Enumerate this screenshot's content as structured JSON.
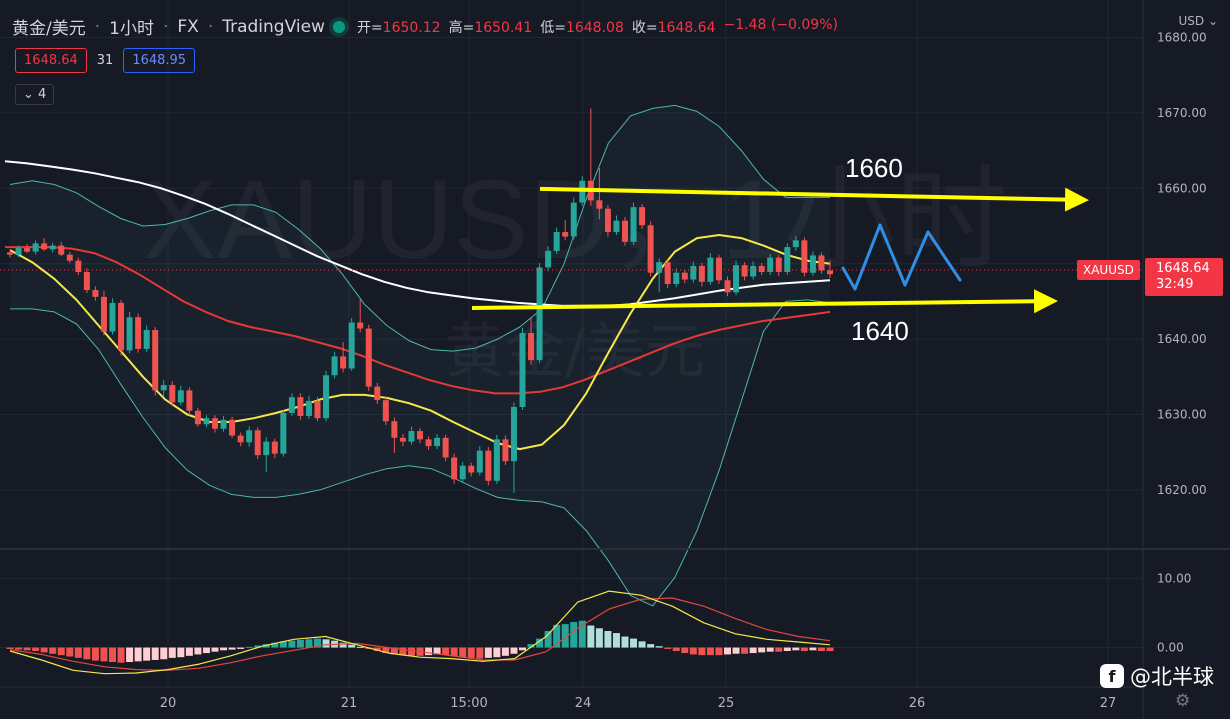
{
  "header": {
    "symbol_name": "黄金/美元",
    "interval": "1小时",
    "exchange": "FX",
    "provider": "TradingView",
    "open_label": "开=",
    "open": "1650.12",
    "high_label": "高=",
    "high": "1650.41",
    "low_label": "低=",
    "low": "1648.08",
    "close_label": "收=",
    "close": "1648.64",
    "change": "−1.48 (−0.09%)"
  },
  "quote": {
    "bid": "1648.64",
    "spread": "31",
    "ask": "1648.95"
  },
  "indicators_toggle": "4",
  "currency": "USD",
  "price_tag": {
    "symbol": "XAUUSD",
    "price": "1648.64",
    "countdown": "32:49"
  },
  "background_watermark": {
    "ticker": "XAUUSD，1小时",
    "name": "黄金/美元"
  },
  "annotations": {
    "upper_level": "1660",
    "lower_level": "1640"
  },
  "brand": {
    "name": "北半球"
  },
  "colors": {
    "up": "#26a69a",
    "down": "#ef5350",
    "ma_white": "#ffffff",
    "ma_yellow": "#f5e94a",
    "ma_red": "#e53935",
    "bollinger": "#4db6ac",
    "arrow": "#ffff00",
    "wave": "#2f8ee6"
  },
  "chart_data": [
    {
      "type": "candlestick",
      "x_axis_labels": [
        "20",
        "21",
        "15:00",
        "24",
        "25",
        "26",
        "27"
      ],
      "y_ticks": [
        1620,
        1630,
        1640,
        1650,
        1660,
        1670,
        1680
      ],
      "ylim": [
        1616,
        1681
      ],
      "last_price": 1648.64,
      "candles": [
        [
          1651.5,
          1651.9,
          1650.8,
          1651.2
        ],
        [
          1651.2,
          1652.4,
          1650.9,
          1652.1
        ],
        [
          1652.1,
          1652.6,
          1651.4,
          1651.6
        ],
        [
          1651.6,
          1653.1,
          1651.2,
          1652.7
        ],
        [
          1652.7,
          1653.4,
          1651.7,
          1651.9
        ],
        [
          1651.9,
          1652.8,
          1651.5,
          1652.4
        ],
        [
          1652.4,
          1652.9,
          1651.0,
          1651.2
        ],
        [
          1651.2,
          1651.6,
          1650.1,
          1650.4
        ],
        [
          1650.4,
          1650.8,
          1648.5,
          1648.9
        ],
        [
          1648.9,
          1649.4,
          1646.1,
          1646.5
        ],
        [
          1646.5,
          1647.0,
          1645.1,
          1645.6
        ],
        [
          1645.6,
          1646.4,
          1640.5,
          1641.0
        ],
        [
          1641.0,
          1645.4,
          1640.6,
          1644.8
        ],
        [
          1644.8,
          1645.2,
          1637.8,
          1638.5
        ],
        [
          1638.5,
          1643.6,
          1638.1,
          1642.9
        ],
        [
          1642.9,
          1643.4,
          1638.2,
          1638.7
        ],
        [
          1638.7,
          1641.8,
          1638.3,
          1641.2
        ],
        [
          1641.2,
          1641.6,
          1632.5,
          1633.2
        ],
        [
          1633.2,
          1634.6,
          1632.4,
          1633.9
        ],
        [
          1633.9,
          1634.4,
          1631.1,
          1631.6
        ],
        [
          1631.6,
          1633.8,
          1631.2,
          1633.2
        ],
        [
          1633.2,
          1633.6,
          1629.9,
          1630.5
        ],
        [
          1630.5,
          1630.9,
          1628.4,
          1628.7
        ],
        [
          1628.7,
          1629.9,
          1628.3,
          1629.5
        ],
        [
          1629.5,
          1629.9,
          1627.6,
          1628.1
        ],
        [
          1628.1,
          1629.8,
          1627.7,
          1629.3
        ],
        [
          1629.3,
          1629.7,
          1626.9,
          1627.2
        ],
        [
          1627.2,
          1627.6,
          1625.8,
          1626.3
        ],
        [
          1626.3,
          1628.4,
          1625.7,
          1627.9
        ],
        [
          1627.9,
          1628.3,
          1624.1,
          1624.6
        ],
        [
          1624.6,
          1627.0,
          1622.4,
          1626.4
        ],
        [
          1626.4,
          1626.8,
          1624.2,
          1624.8
        ],
        [
          1624.8,
          1630.6,
          1624.4,
          1630.2
        ],
        [
          1630.2,
          1632.8,
          1629.8,
          1632.3
        ],
        [
          1632.3,
          1632.8,
          1629.3,
          1629.8
        ],
        [
          1629.8,
          1632.5,
          1629.4,
          1631.8
        ],
        [
          1631.8,
          1632.3,
          1629.1,
          1629.5
        ],
        [
          1629.5,
          1635.8,
          1629.1,
          1635.2
        ],
        [
          1635.2,
          1638.3,
          1634.8,
          1637.7
        ],
        [
          1637.7,
          1639.6,
          1635.6,
          1636.1
        ],
        [
          1636.1,
          1642.8,
          1635.8,
          1642.2
        ],
        [
          1642.2,
          1645.3,
          1640.9,
          1641.4
        ],
        [
          1641.4,
          1641.9,
          1633.1,
          1633.7
        ],
        [
          1633.7,
          1634.2,
          1631.4,
          1631.9
        ],
        [
          1631.9,
          1632.3,
          1628.6,
          1629.1
        ],
        [
          1629.1,
          1629.6,
          1624.9,
          1626.9
        ],
        [
          1626.9,
          1627.4,
          1625.8,
          1626.4
        ],
        [
          1626.4,
          1628.4,
          1626.0,
          1627.8
        ],
        [
          1627.8,
          1628.2,
          1626.2,
          1626.7
        ],
        [
          1626.7,
          1627.1,
          1625.3,
          1625.8
        ],
        [
          1625.8,
          1627.4,
          1625.4,
          1626.9
        ],
        [
          1626.9,
          1627.3,
          1623.8,
          1624.3
        ],
        [
          1624.3,
          1624.8,
          1620.8,
          1621.4
        ],
        [
          1621.4,
          1623.7,
          1621.0,
          1623.2
        ],
        [
          1623.2,
          1623.6,
          1621.8,
          1622.3
        ],
        [
          1622.3,
          1625.8,
          1621.9,
          1625.2
        ],
        [
          1625.2,
          1625.7,
          1620.6,
          1621.2
        ],
        [
          1621.2,
          1627.3,
          1620.8,
          1626.7
        ],
        [
          1626.7,
          1627.2,
          1623.3,
          1623.8
        ],
        [
          1623.8,
          1631.6,
          1619.6,
          1631.0
        ],
        [
          1631.0,
          1641.5,
          1630.6,
          1640.8
        ],
        [
          1640.8,
          1642.9,
          1636.6,
          1637.2
        ],
        [
          1637.2,
          1650.1,
          1636.8,
          1649.5
        ],
        [
          1649.5,
          1652.3,
          1649.0,
          1651.7
        ],
        [
          1651.7,
          1654.8,
          1651.3,
          1654.2
        ],
        [
          1654.2,
          1655.8,
          1653.1,
          1653.6
        ],
        [
          1653.6,
          1658.8,
          1653.2,
          1658.1
        ],
        [
          1658.1,
          1661.6,
          1657.7,
          1661.0
        ],
        [
          1661.0,
          1670.6,
          1657.7,
          1658.4
        ],
        [
          1658.4,
          1662.7,
          1655.9,
          1657.3
        ],
        [
          1657.3,
          1657.8,
          1653.6,
          1654.2
        ],
        [
          1654.2,
          1656.4,
          1653.8,
          1655.7
        ],
        [
          1655.7,
          1656.2,
          1652.4,
          1652.9
        ],
        [
          1652.9,
          1658.1,
          1652.5,
          1657.5
        ],
        [
          1657.5,
          1657.9,
          1654.6,
          1655.1
        ],
        [
          1655.1,
          1655.6,
          1648.3,
          1648.8
        ],
        [
          1648.8,
          1650.7,
          1646.2,
          1650.2
        ],
        [
          1650.2,
          1650.6,
          1646.8,
          1647.3
        ],
        [
          1647.3,
          1649.4,
          1646.9,
          1648.8
        ],
        [
          1648.8,
          1649.2,
          1647.4,
          1647.9
        ],
        [
          1647.9,
          1650.3,
          1647.5,
          1649.7
        ],
        [
          1649.7,
          1650.1,
          1647.0,
          1647.6
        ],
        [
          1647.6,
          1651.4,
          1647.2,
          1650.8
        ],
        [
          1650.8,
          1651.2,
          1647.3,
          1647.8
        ],
        [
          1647.8,
          1648.3,
          1645.7,
          1646.2
        ],
        [
          1646.2,
          1650.4,
          1645.8,
          1649.8
        ],
        [
          1649.8,
          1650.2,
          1647.8,
          1648.3
        ],
        [
          1648.3,
          1650.3,
          1647.9,
          1649.7
        ],
        [
          1649.7,
          1650.1,
          1648.5,
          1648.9
        ],
        [
          1648.9,
          1651.3,
          1648.5,
          1650.8
        ],
        [
          1650.8,
          1651.2,
          1648.4,
          1648.9
        ],
        [
          1648.9,
          1652.7,
          1648.5,
          1652.2
        ],
        [
          1652.2,
          1653.7,
          1651.7,
          1653.1
        ],
        [
          1653.1,
          1653.5,
          1648.3,
          1648.8
        ],
        [
          1648.8,
          1651.6,
          1648.4,
          1651.1
        ],
        [
          1651.1,
          1651.5,
          1648.7,
          1649.1
        ],
        [
          1649.1,
          1650.4,
          1648.1,
          1648.6
        ]
      ],
      "ma_white": [
        1663.6,
        1663.3,
        1662.9,
        1662.5,
        1662.0,
        1661.4,
        1660.8,
        1660.0,
        1659.0,
        1657.9,
        1656.6,
        1655.2,
        1653.8,
        1652.4,
        1651.0,
        1649.8,
        1648.6,
        1647.6,
        1646.8,
        1646.2,
        1645.8,
        1645.4,
        1645.1,
        1644.8,
        1644.6,
        1644.4,
        1644.4,
        1644.4,
        1644.6,
        1645.0,
        1645.4,
        1645.9,
        1646.4,
        1646.8,
        1647.2,
        1647.4,
        1647.6,
        1647.8
      ],
      "ma_yellow": [
        1651.8,
        1650.2,
        1648.0,
        1645.2,
        1641.8,
        1638.4,
        1635.0,
        1632.0,
        1630.0,
        1629.0,
        1629.0,
        1629.5,
        1630.2,
        1631.0,
        1632.0,
        1632.6,
        1632.6,
        1632.2,
        1631.5,
        1630.5,
        1629.0,
        1627.6,
        1626.2,
        1625.4,
        1626.0,
        1628.6,
        1632.8,
        1638.2,
        1643.4,
        1648.0,
        1651.6,
        1653.4,
        1653.8,
        1653.4,
        1652.4,
        1651.2,
        1650.4,
        1650.0
      ],
      "ma_red": [
        1652.2,
        1652.2,
        1652.2,
        1652.0,
        1651.4,
        1650.2,
        1648.6,
        1646.8,
        1645.0,
        1643.6,
        1642.4,
        1641.6,
        1641.0,
        1640.4,
        1639.6,
        1638.8,
        1637.8,
        1636.6,
        1635.6,
        1634.6,
        1633.8,
        1633.2,
        1632.8,
        1632.8,
        1633.0,
        1633.6,
        1634.6,
        1635.8,
        1637.0,
        1638.2,
        1639.4,
        1640.4,
        1641.2,
        1641.8,
        1642.4,
        1642.8,
        1643.2,
        1643.6
      ],
      "bollinger_upper": [
        1660.5,
        1661.0,
        1660.5,
        1659.4,
        1657.6,
        1656.0,
        1655.0,
        1655.2,
        1656.0,
        1657.0,
        1657.8,
        1657.8,
        1656.8,
        1654.6,
        1652.0,
        1648.6,
        1644.6,
        1641.8,
        1639.8,
        1638.6,
        1638.4,
        1638.8,
        1640.0,
        1641.6,
        1644.0,
        1650.0,
        1658.6,
        1666.0,
        1669.6,
        1670.6,
        1671.0,
        1670.2,
        1668.2,
        1665.0,
        1661.2,
        1658.8,
        1658.8,
        1658.8
      ],
      "bollinger_lower": [
        1644.0,
        1644.0,
        1643.6,
        1642.0,
        1638.6,
        1634.0,
        1629.6,
        1625.6,
        1622.6,
        1620.6,
        1619.4,
        1619.0,
        1619.0,
        1619.4,
        1620.0,
        1621.0,
        1622.0,
        1622.8,
        1623.2,
        1622.8,
        1621.6,
        1620.2,
        1619.0,
        1618.6,
        1618.4,
        1617.6,
        1614.6,
        1610.6,
        1606.0,
        1604.6,
        1608.4,
        1614.6,
        1622.6,
        1631.8,
        1641.0,
        1645.0,
        1645.2,
        1644.8
      ],
      "annotation_levels": [
        1660,
        1640
      ]
    },
    {
      "type": "macd",
      "y_ticks": [
        0,
        10
      ],
      "ylim": [
        -5,
        13
      ],
      "histogram": [
        -0.2,
        -0.3,
        -0.4,
        -0.5,
        -0.7,
        -0.9,
        -1.1,
        -1.3,
        -1.5,
        -1.7,
        -1.9,
        -2.0,
        -2.1,
        -2.2,
        -2.1,
        -2.0,
        -1.9,
        -1.8,
        -1.7,
        -1.5,
        -1.4,
        -1.2,
        -1.0,
        -0.8,
        -0.6,
        -0.4,
        -0.3,
        -0.2,
        0.1,
        0.3,
        0.5,
        0.7,
        0.9,
        1.0,
        1.1,
        1.2,
        1.3,
        1.2,
        1.0,
        0.7,
        0.4,
        0.1,
        -0.2,
        -0.5,
        -0.8,
        -1.0,
        -1.1,
        -1.2,
        -1.2,
        -1.1,
        -1.0,
        -1.1,
        -1.3,
        -1.4,
        -1.5,
        -1.6,
        -1.5,
        -1.4,
        -1.2,
        -0.9,
        -0.4,
        0.5,
        1.3,
        2.4,
        3.3,
        3.4,
        3.7,
        3.9,
        3.2,
        2.8,
        2.4,
        2.1,
        1.6,
        1.3,
        0.9,
        0.5,
        0.2,
        -0.2,
        -0.5,
        -0.8,
        -1.0,
        -1.1,
        -1.1,
        -1.1,
        -1.0,
        -0.9,
        -0.9,
        -0.8,
        -0.7,
        -0.6,
        -0.6,
        -0.5,
        -0.4,
        -0.5,
        -0.4,
        -0.5,
        -0.5
      ],
      "macd_line": [
        -0.5,
        -1.8,
        -3.3,
        -3.8,
        -3.7,
        -3.2,
        -2.4,
        -1.2,
        0.2,
        1.2,
        1.6,
        0.4,
        -0.8,
        -1.4,
        -1.6,
        -2.0,
        -1.6,
        1.6,
        6.6,
        8.2,
        7.6,
        6.0,
        3.6,
        2.0,
        1.2,
        0.8,
        0.4
      ],
      "signal_line": [
        -0.3,
        -1.0,
        -2.0,
        -2.8,
        -3.2,
        -3.3,
        -3.0,
        -2.2,
        -1.2,
        -0.4,
        0.4,
        0.6,
        0.0,
        -0.6,
        -1.2,
        -1.8,
        -1.8,
        -0.6,
        2.8,
        5.6,
        7.0,
        7.2,
        6.0,
        4.2,
        2.6,
        1.6,
        1.0
      ]
    }
  ]
}
